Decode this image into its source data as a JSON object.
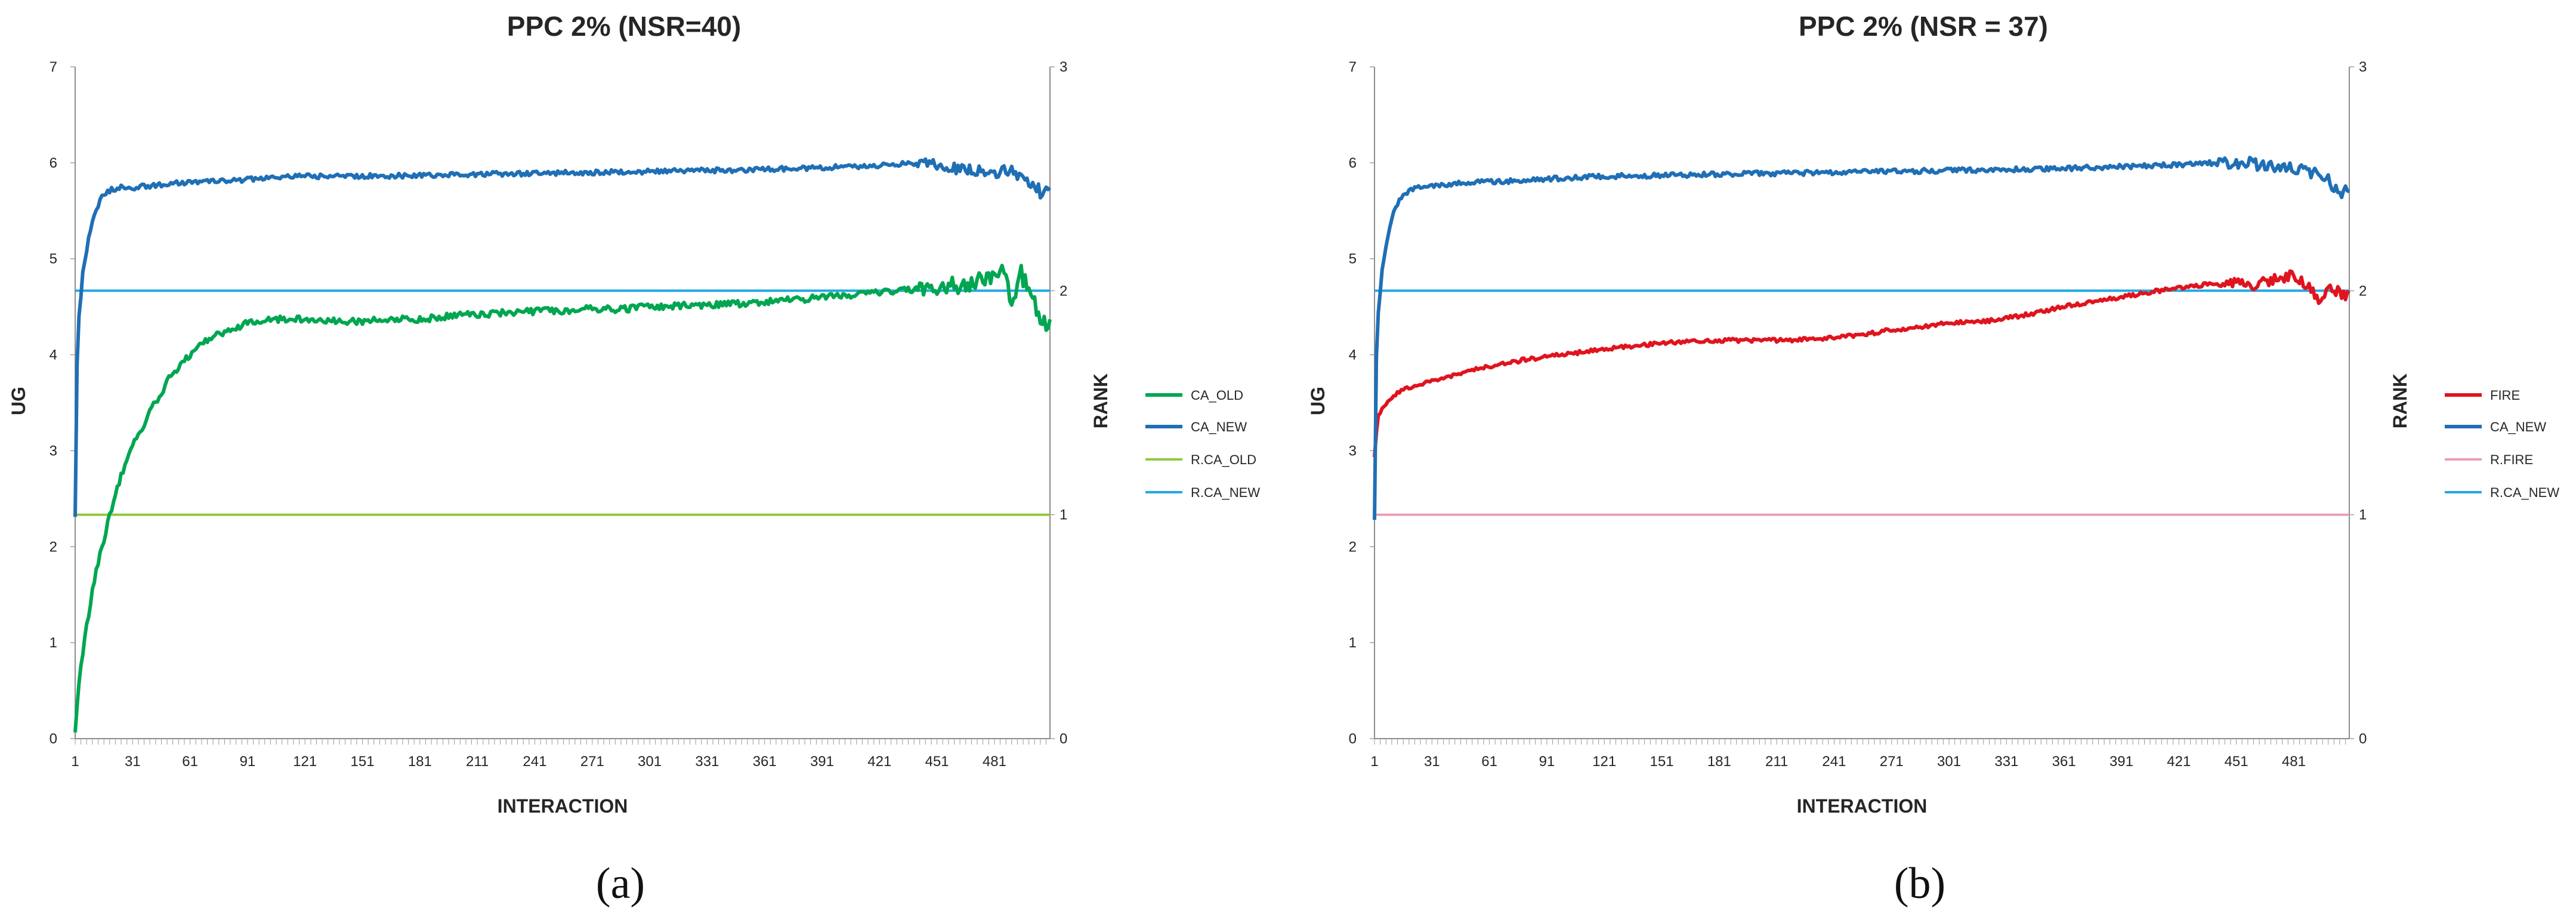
{
  "colors": {
    "CA_OLD": "#00a651",
    "CA_NEW": "#1f6fb5",
    "R.CA_OLD": "#92c83e",
    "R.CA_NEW": "#22a9e0",
    "FIRE": "#e0141e",
    "R.FIRE": "#e8a0b4"
  },
  "chart_data": [
    {
      "type": "line",
      "title": "PPC 2% (NSR=40)",
      "caption": "(a)",
      "xlabel": "INTERACTION",
      "ylabel": "UG",
      "y2label": "RANK",
      "ylim": [
        0,
        7
      ],
      "y2lim": [
        0,
        3
      ],
      "yticks": [
        "0",
        "1",
        "2",
        "3",
        "4",
        "5",
        "6",
        "7"
      ],
      "y2ticks": [
        "0",
        "1",
        "2",
        "3"
      ],
      "xlim": [
        1,
        510
      ],
      "xticks": [
        "1",
        "31",
        "61",
        "91",
        "121",
        "151",
        "181",
        "211",
        "241",
        "271",
        "301",
        "331",
        "361",
        "391",
        "421",
        "451",
        "481"
      ],
      "legend": [
        "CA_OLD",
        "CA_NEW",
        "R.CA_OLD",
        "R.CA_NEW"
      ],
      "legend_position": "right",
      "series": [
        {
          "name": "CA_OLD",
          "axis": "left",
          "color_key": "CA_OLD",
          "x": [
            1,
            2,
            3,
            5,
            8,
            11,
            15,
            20,
            25,
            31,
            40,
            50,
            61,
            70,
            80,
            91,
            100,
            110,
            121,
            130,
            140,
            151,
            165,
            181,
            195,
            211,
            225,
            241,
            255,
            271,
            285,
            301,
            315,
            331,
            345,
            361,
            375,
            391,
            405,
            421,
            435,
            451,
            460,
            470,
            480,
            485,
            490,
            495,
            500,
            505,
            510
          ],
          "y": [
            0.05,
            0.35,
            0.55,
            0.9,
            1.3,
            1.65,
            2.0,
            2.4,
            2.75,
            3.05,
            3.4,
            3.75,
            4.0,
            4.15,
            4.25,
            4.33,
            4.36,
            4.37,
            4.37,
            4.36,
            4.35,
            4.35,
            4.37,
            4.37,
            4.4,
            4.42,
            4.44,
            4.45,
            4.46,
            4.48,
            4.47,
            4.5,
            4.51,
            4.52,
            4.53,
            4.55,
            4.57,
            4.6,
            4.62,
            4.65,
            4.67,
            4.7,
            4.72,
            4.75,
            4.8,
            4.95,
            4.55,
            4.85,
            4.6,
            4.4,
            4.3
          ],
          "jitter": 0.035
        },
        {
          "name": "CA_NEW",
          "axis": "left",
          "color_key": "CA_NEW",
          "x": [
            1,
            2,
            3,
            5,
            8,
            11,
            15,
            20,
            25,
            31,
            40,
            50,
            61,
            80,
            100,
            121,
            151,
            181,
            211,
            241,
            271,
            301,
            331,
            361,
            391,
            421,
            440,
            451,
            460,
            470,
            480,
            490,
            500,
            505,
            510
          ],
          "y": [
            2.3,
            3.9,
            4.4,
            4.85,
            5.2,
            5.45,
            5.65,
            5.72,
            5.75,
            5.74,
            5.76,
            5.78,
            5.8,
            5.81,
            5.84,
            5.86,
            5.86,
            5.87,
            5.88,
            5.89,
            5.9,
            5.91,
            5.92,
            5.93,
            5.95,
            5.97,
            6.0,
            5.98,
            5.95,
            5.93,
            5.9,
            5.92,
            5.8,
            5.7,
            5.75
          ],
          "jitter": 0.025
        },
        {
          "name": "R.CA_OLD",
          "axis": "right",
          "color_key": "R.CA_OLD",
          "x": [
            1,
            510
          ],
          "y": [
            1,
            1
          ],
          "jitter": 0
        },
        {
          "name": "R.CA_NEW",
          "axis": "right",
          "color_key": "R.CA_NEW",
          "x": [
            1,
            510
          ],
          "y": [
            2,
            2
          ],
          "jitter": 0
        }
      ]
    },
    {
      "type": "line",
      "title": "PPC 2% (NSR = 37)",
      "caption": "(b)",
      "xlabel": "INTERACTION",
      "ylabel": "UG",
      "y2label": "RANK",
      "ylim": [
        0,
        7
      ],
      "y2lim": [
        0,
        3
      ],
      "yticks": [
        "0",
        "1",
        "2",
        "3",
        "4",
        "5",
        "6",
        "7"
      ],
      "y2ticks": [
        "0",
        "1",
        "2",
        "3"
      ],
      "xlim": [
        1,
        510
      ],
      "xticks": [
        "1",
        "31",
        "61",
        "91",
        "121",
        "151",
        "181",
        "211",
        "241",
        "271",
        "301",
        "331",
        "361",
        "391",
        "421",
        "451",
        "481"
      ],
      "legend": [
        "FIRE",
        "CA_NEW",
        "R.FIRE",
        "R.CA_NEW"
      ],
      "legend_position": "right",
      "series": [
        {
          "name": "FIRE",
          "axis": "left",
          "color_key": "FIRE",
          "x": [
            1,
            2,
            3,
            5,
            8,
            11,
            15,
            20,
            31,
            45,
            61,
            80,
            91,
            110,
            121,
            140,
            151,
            170,
            181,
            200,
            211,
            230,
            241,
            260,
            271,
            290,
            301,
            320,
            331,
            345,
            361,
            375,
            391,
            405,
            421,
            435,
            451,
            460,
            470,
            480,
            490,
            495,
            500,
            505,
            510
          ],
          "y": [
            2.95,
            3.2,
            3.35,
            3.45,
            3.52,
            3.58,
            3.62,
            3.66,
            3.73,
            3.8,
            3.88,
            3.95,
            3.98,
            4.03,
            4.06,
            4.1,
            4.12,
            4.14,
            4.15,
            4.15,
            4.15,
            4.16,
            4.18,
            4.22,
            4.26,
            4.3,
            4.33,
            4.35,
            4.38,
            4.43,
            4.5,
            4.55,
            4.6,
            4.65,
            4.7,
            4.73,
            4.75,
            4.72,
            4.78,
            4.83,
            4.7,
            4.55,
            4.7,
            4.65,
            4.6
          ],
          "jitter": 0.02
        },
        {
          "name": "CA_NEW",
          "axis": "left",
          "color_key": "CA_NEW",
          "x": [
            1,
            2,
            3,
            5,
            8,
            11,
            15,
            20,
            25,
            31,
            40,
            50,
            61,
            80,
            100,
            121,
            151,
            181,
            211,
            241,
            271,
            301,
            331,
            361,
            391,
            421,
            440,
            451,
            460,
            470,
            480,
            490,
            500,
            505,
            510
          ],
          "y": [
            2.3,
            4.0,
            4.45,
            4.9,
            5.25,
            5.5,
            5.65,
            5.72,
            5.75,
            5.76,
            5.78,
            5.8,
            5.8,
            5.82,
            5.84,
            5.86,
            5.87,
            5.88,
            5.89,
            5.9,
            5.91,
            5.92,
            5.93,
            5.94,
            5.96,
            5.98,
            6.0,
            6.01,
            5.99,
            5.96,
            5.93,
            5.9,
            5.8,
            5.68,
            5.75
          ],
          "jitter": 0.025
        },
        {
          "name": "R.FIRE",
          "axis": "right",
          "color_key": "R.FIRE",
          "x": [
            1,
            510
          ],
          "y": [
            1,
            1
          ],
          "jitter": 0
        },
        {
          "name": "R.CA_NEW",
          "axis": "right",
          "color_key": "R.CA_NEW",
          "x": [
            1,
            510
          ],
          "y": [
            2,
            2
          ],
          "jitter": 0
        }
      ]
    }
  ]
}
